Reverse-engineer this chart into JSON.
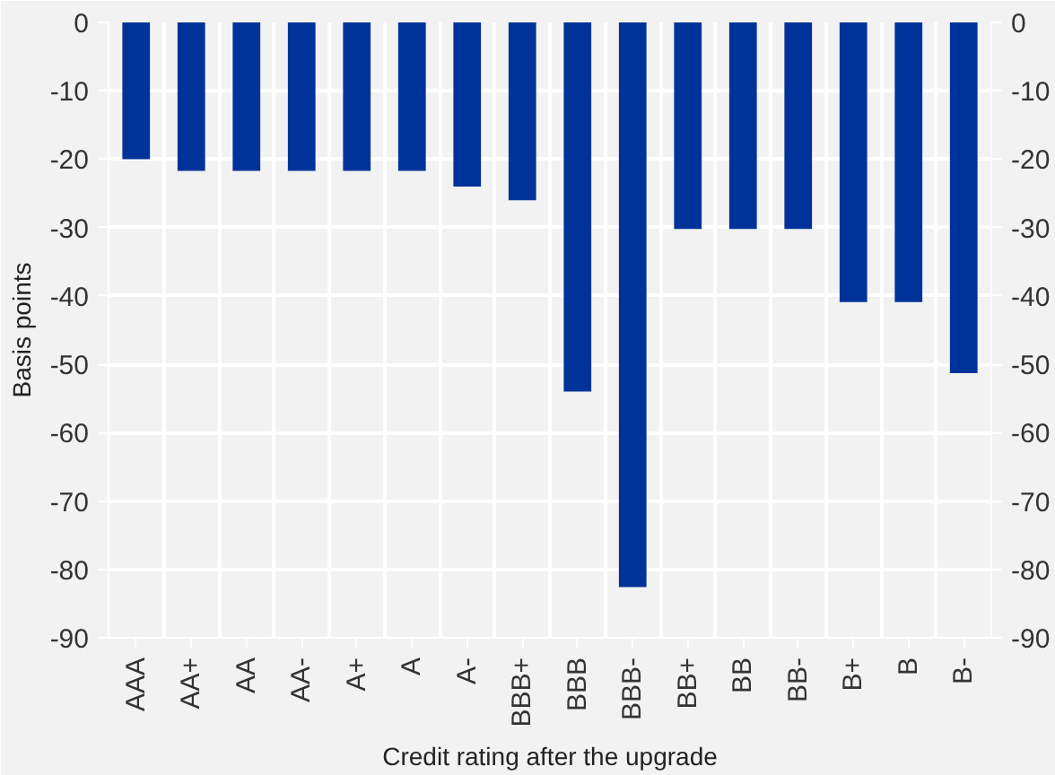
{
  "chart_data": {
    "type": "bar",
    "xlabel": "Credit rating after the upgrade",
    "ylabel": "Basis points",
    "categories": [
      "AAA",
      "AA+",
      "AA",
      "AA-",
      "A+",
      "A",
      "A-",
      "BBB+",
      "BBB",
      "BBB-",
      "BB+",
      "BB",
      "BB-",
      "B+",
      "B",
      "B-"
    ],
    "values": [
      -20,
      -21.7,
      -21.7,
      -21.7,
      -21.7,
      -21.7,
      -24,
      -26,
      -54,
      -82.6,
      -30.2,
      -30.2,
      -30.2,
      -40.9,
      -40.9,
      -51.3
    ],
    "color": "#003399",
    "ylim": [
      -90,
      0
    ],
    "yticks": [
      0,
      -10,
      -20,
      -30,
      -40,
      -50,
      -60,
      -70,
      -80,
      -90
    ],
    "y2lim": [
      -90,
      0
    ],
    "y2ticks": [
      0,
      -10,
      -20,
      -30,
      -40,
      -50,
      -60,
      -70,
      -80,
      -90
    ],
    "grid": true
  }
}
